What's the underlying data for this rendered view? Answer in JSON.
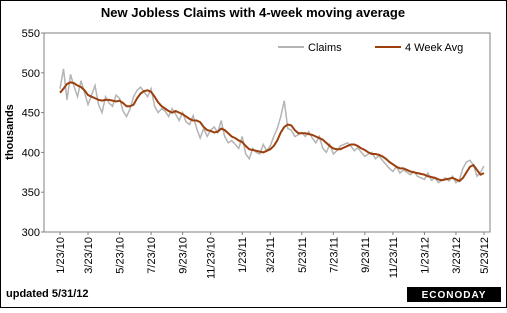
{
  "chart_data": {
    "type": "line",
    "title": "New Jobless Claims with 4-week moving average",
    "y_label": "thousands",
    "footnote": "updated 5/31/12",
    "logo": "ECONODAY",
    "ylim": [
      300,
      550
    ],
    "yticks": [
      300,
      350,
      400,
      450,
      500,
      550
    ],
    "grid": false,
    "legend": "top-right",
    "categories": [
      "1/23/10",
      null,
      null,
      null,
      null,
      null,
      null,
      null,
      "3/23/10",
      null,
      null,
      null,
      null,
      null,
      null,
      null,
      null,
      "5/23/10",
      null,
      null,
      null,
      null,
      null,
      null,
      null,
      null,
      "7/23/10",
      null,
      null,
      null,
      null,
      null,
      null,
      null,
      null,
      "9/23/10",
      null,
      null,
      null,
      null,
      null,
      null,
      null,
      "11/23/10",
      null,
      null,
      null,
      null,
      null,
      null,
      null,
      null,
      "1/23/11",
      null,
      null,
      null,
      null,
      null,
      null,
      null,
      "3/23/11",
      null,
      null,
      null,
      null,
      null,
      null,
      null,
      null,
      "5/23/11",
      null,
      null,
      null,
      null,
      null,
      null,
      null,
      null,
      "7/23/11",
      null,
      null,
      null,
      null,
      null,
      null,
      null,
      null,
      "9/23/11",
      null,
      null,
      null,
      null,
      null,
      null,
      null,
      "11/23/11",
      null,
      null,
      null,
      null,
      null,
      null,
      null,
      null,
      "1/23/12",
      null,
      null,
      null,
      null,
      null,
      null,
      null,
      null,
      "3/23/12",
      null,
      null,
      null,
      null,
      null,
      null,
      null,
      "5/23/12"
    ],
    "series": [
      {
        "name": "Claims",
        "color": "#b4b4b4",
        "values": [
          480,
          505,
          466,
          498,
          483,
          470,
          490,
          475,
          460,
          472,
          484,
          460,
          450,
          470,
          462,
          458,
          472,
          468,
          452,
          445,
          455,
          470,
          478,
          482,
          476,
          470,
          480,
          458,
          450,
          455,
          452,
          445,
          455,
          448,
          440,
          450,
          438,
          435,
          446,
          430,
          418,
          430,
          420,
          428,
          432,
          425,
          440,
          420,
          412,
          415,
          410,
          405,
          420,
          398,
          392,
          405,
          400,
          398,
          410,
          402,
          408,
          420,
          430,
          445,
          465,
          430,
          428,
          420,
          422,
          425,
          420,
          426,
          418,
          412,
          420,
          405,
          400,
          410,
          398,
          402,
          408,
          410,
          412,
          408,
          402,
          406,
          400,
          395,
          398,
          400,
          392,
          396,
          390,
          385,
          380,
          376,
          382,
          374,
          378,
          375,
          372,
          376,
          370,
          368,
          366,
          374,
          365,
          368,
          362,
          365,
          368,
          364,
          370,
          362,
          366,
          380,
          388,
          390,
          384,
          370,
          375,
          383
        ]
      },
      {
        "name": "4 Week Avg",
        "color": "#9c3f0c",
        "values": [
          475,
          480,
          486,
          488,
          487,
          484,
          482,
          478,
          472,
          470,
          468,
          466,
          465,
          466,
          466,
          465,
          464,
          465,
          462,
          458,
          458,
          460,
          468,
          474,
          477,
          478,
          476,
          470,
          463,
          458,
          455,
          452,
          450,
          452,
          450,
          448,
          445,
          442,
          440,
          440,
          438,
          432,
          428,
          427,
          425,
          426,
          430,
          428,
          424,
          420,
          418,
          415,
          413,
          408,
          404,
          403,
          402,
          401,
          400,
          402,
          404,
          408,
          415,
          425,
          432,
          435,
          434,
          428,
          424,
          424,
          424,
          423,
          422,
          420,
          418,
          416,
          412,
          408,
          405,
          404,
          404,
          406,
          408,
          410,
          410,
          408,
          405,
          403,
          400,
          398,
          398,
          397,
          395,
          392,
          388,
          385,
          382,
          380,
          380,
          378,
          376,
          375,
          374,
          373,
          372,
          370,
          369,
          368,
          366,
          365,
          366,
          367,
          368,
          366,
          364,
          368,
          375,
          382,
          384,
          378,
          372,
          374
        ]
      }
    ]
  }
}
